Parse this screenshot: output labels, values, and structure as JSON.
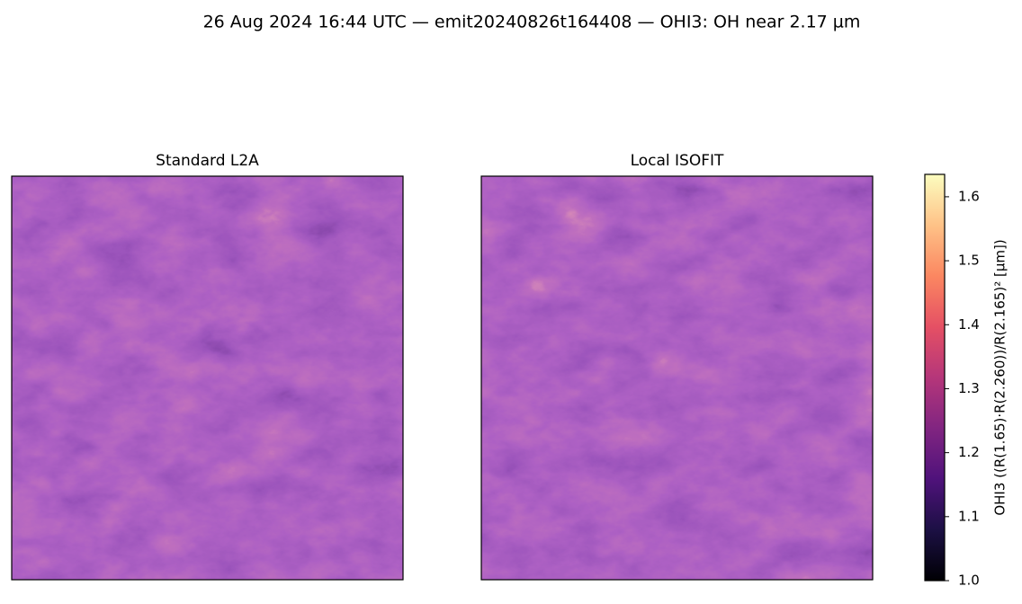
{
  "chart_data": {
    "type": "image",
    "title": "26 Aug 2024 16:44 UTC — emit20240826t164408 — OHI3: OH near 2.17 µm",
    "panels": [
      {
        "title": "Standard L2A"
      },
      {
        "title": "Local ISOFIT"
      }
    ],
    "colorbar": {
      "label": "OHI3  ((R(1.65)·R(2.260))/R(2.165)²  [µm])",
      "colormap": "magma",
      "ylim": [
        1.0,
        1.635
      ],
      "yticks": [
        {
          "value": 1.0,
          "label": "1.0"
        },
        1.1,
        1.2,
        1.3,
        1.4,
        1.5,
        1.6
      ]
    }
  }
}
